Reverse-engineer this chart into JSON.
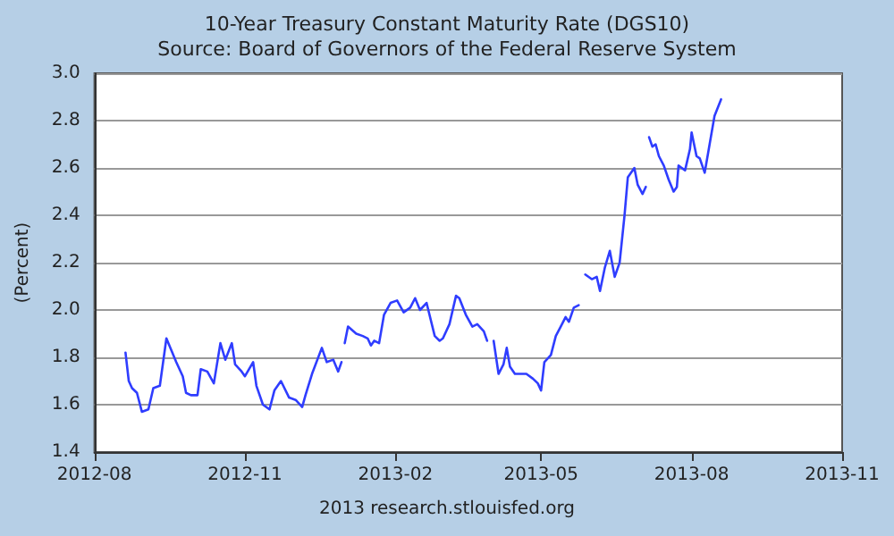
{
  "chart_data": {
    "type": "line",
    "title": "10-Year Treasury Constant Maturity Rate (DGS10)",
    "subtitle": "Source: Board of Governors of the Federal Reserve System",
    "ylabel": "(Percent)",
    "annotations": [
      "2013 research.stlouisfed.org"
    ],
    "x": [
      "2012-08-20",
      "2012-08-22",
      "2012-08-24",
      "2012-08-27",
      "2012-08-30",
      "2012-09-03",
      "2012-09-06",
      "2012-09-10",
      "2012-09-14",
      "2012-09-17",
      "2012-09-20",
      "2012-09-24",
      "2012-09-26",
      "2012-09-29",
      "2012-10-03",
      "2012-10-05",
      "2012-10-09",
      "2012-10-13",
      "2012-10-17",
      "2012-10-20",
      "2012-10-24",
      "2012-10-26",
      "2012-10-30",
      "2012-11-01",
      "2012-11-06",
      "2012-11-08",
      "2012-11-12",
      "2012-11-16",
      "2012-11-19",
      "2012-11-23",
      "2012-11-28",
      "2012-12-02",
      "2012-12-06",
      "2012-12-08",
      "2012-12-12",
      "2012-12-18",
      "2012-12-21",
      "2012-12-25",
      "2012-12-28",
      "2012-12-30",
      "2012-12-31",
      "2013-01-01",
      "2013-01-03",
      "2013-01-08",
      "2013-01-12",
      "2013-01-15",
      "2013-01-17",
      "2013-01-19",
      "2013-01-22",
      "2013-01-25",
      "2013-01-29",
      "2013-02-02",
      "2013-02-06",
      "2013-02-10",
      "2013-02-13",
      "2013-02-16",
      "2013-02-20",
      "2013-02-25",
      "2013-02-28",
      "2013-03-02",
      "2013-03-06",
      "2013-03-10",
      "2013-03-12",
      "2013-03-16",
      "2013-03-20",
      "2013-03-23",
      "2013-03-27",
      "2013-03-29",
      "2013-03-31",
      "2013-04-02",
      "2013-04-05",
      "2013-04-08",
      "2013-04-10",
      "2013-04-12",
      "2013-04-15",
      "2013-04-19",
      "2013-04-22",
      "2013-04-26",
      "2013-04-29",
      "2013-05-01",
      "2013-05-03",
      "2013-05-07",
      "2013-05-10",
      "2013-05-13",
      "2013-05-16",
      "2013-05-18",
      "2013-05-21",
      "2013-05-24",
      "2013-05-26",
      "2013-05-28",
      "2013-06-01",
      "2013-06-04",
      "2013-06-06",
      "2013-06-09",
      "2013-06-12",
      "2013-06-15",
      "2013-06-18",
      "2013-06-21",
      "2013-06-23",
      "2013-06-27",
      "2013-06-29",
      "2013-07-02",
      "2013-07-04",
      "2013-07-05",
      "2013-07-06",
      "2013-07-08",
      "2013-07-10",
      "2013-07-12",
      "2013-07-15",
      "2013-07-18",
      "2013-07-21",
      "2013-07-23",
      "2013-07-24",
      "2013-07-28",
      "2013-07-31",
      "2013-08-01",
      "2013-08-04",
      "2013-08-06",
      "2013-08-09",
      "2013-08-12",
      "2013-08-15",
      "2013-08-19"
    ],
    "series": [
      {
        "color": "#2f3dff",
        "values": [
          1.82,
          1.7,
          1.67,
          1.65,
          1.57,
          1.58,
          1.67,
          1.68,
          1.88,
          1.83,
          1.78,
          1.72,
          1.65,
          1.64,
          1.64,
          1.75,
          1.74,
          1.69,
          1.86,
          1.79,
          1.86,
          1.77,
          1.74,
          1.72,
          1.78,
          1.68,
          1.6,
          1.58,
          1.66,
          1.7,
          1.63,
          1.62,
          1.59,
          1.64,
          1.73,
          1.84,
          1.78,
          1.79,
          1.74,
          1.78,
          null,
          1.86,
          1.93,
          1.9,
          1.89,
          1.88,
          1.85,
          1.87,
          1.86,
          1.98,
          2.03,
          2.04,
          1.99,
          2.01,
          2.05,
          2.0,
          2.03,
          1.89,
          1.87,
          1.88,
          1.94,
          2.06,
          2.05,
          1.98,
          1.93,
          1.94,
          1.91,
          1.87,
          null,
          1.87,
          1.73,
          1.77,
          1.84,
          1.76,
          1.73,
          1.73,
          1.73,
          1.71,
          1.69,
          1.66,
          1.78,
          1.81,
          1.89,
          1.93,
          1.97,
          1.95,
          2.01,
          2.02,
          null,
          2.15,
          2.13,
          2.14,
          2.08,
          2.18,
          2.25,
          2.14,
          2.2,
          2.4,
          2.56,
          2.6,
          2.53,
          2.49,
          2.52,
          null,
          2.73,
          2.69,
          2.7,
          2.65,
          2.61,
          2.55,
          2.5,
          2.52,
          2.61,
          2.59,
          2.68,
          2.75,
          2.65,
          2.64,
          2.58,
          2.7,
          2.82,
          2.89
        ]
      }
    ],
    "xlim": [
      "2012-08",
      "2013-11"
    ],
    "xticks": [
      "2012-08",
      "2012-11",
      "2013-02",
      "2013-05",
      "2013-08",
      "2013-11"
    ],
    "ylim": [
      1.4,
      3.0
    ],
    "yticks": [
      1.4,
      1.6,
      1.8,
      {
        "value": 2,
        "label": "2.0"
      },
      2.2,
      2.4,
      2.6,
      2.8,
      {
        "value": 3,
        "label": "3.0"
      }
    ],
    "grid": "y",
    "marker": "none",
    "line_style": "solid"
  }
}
